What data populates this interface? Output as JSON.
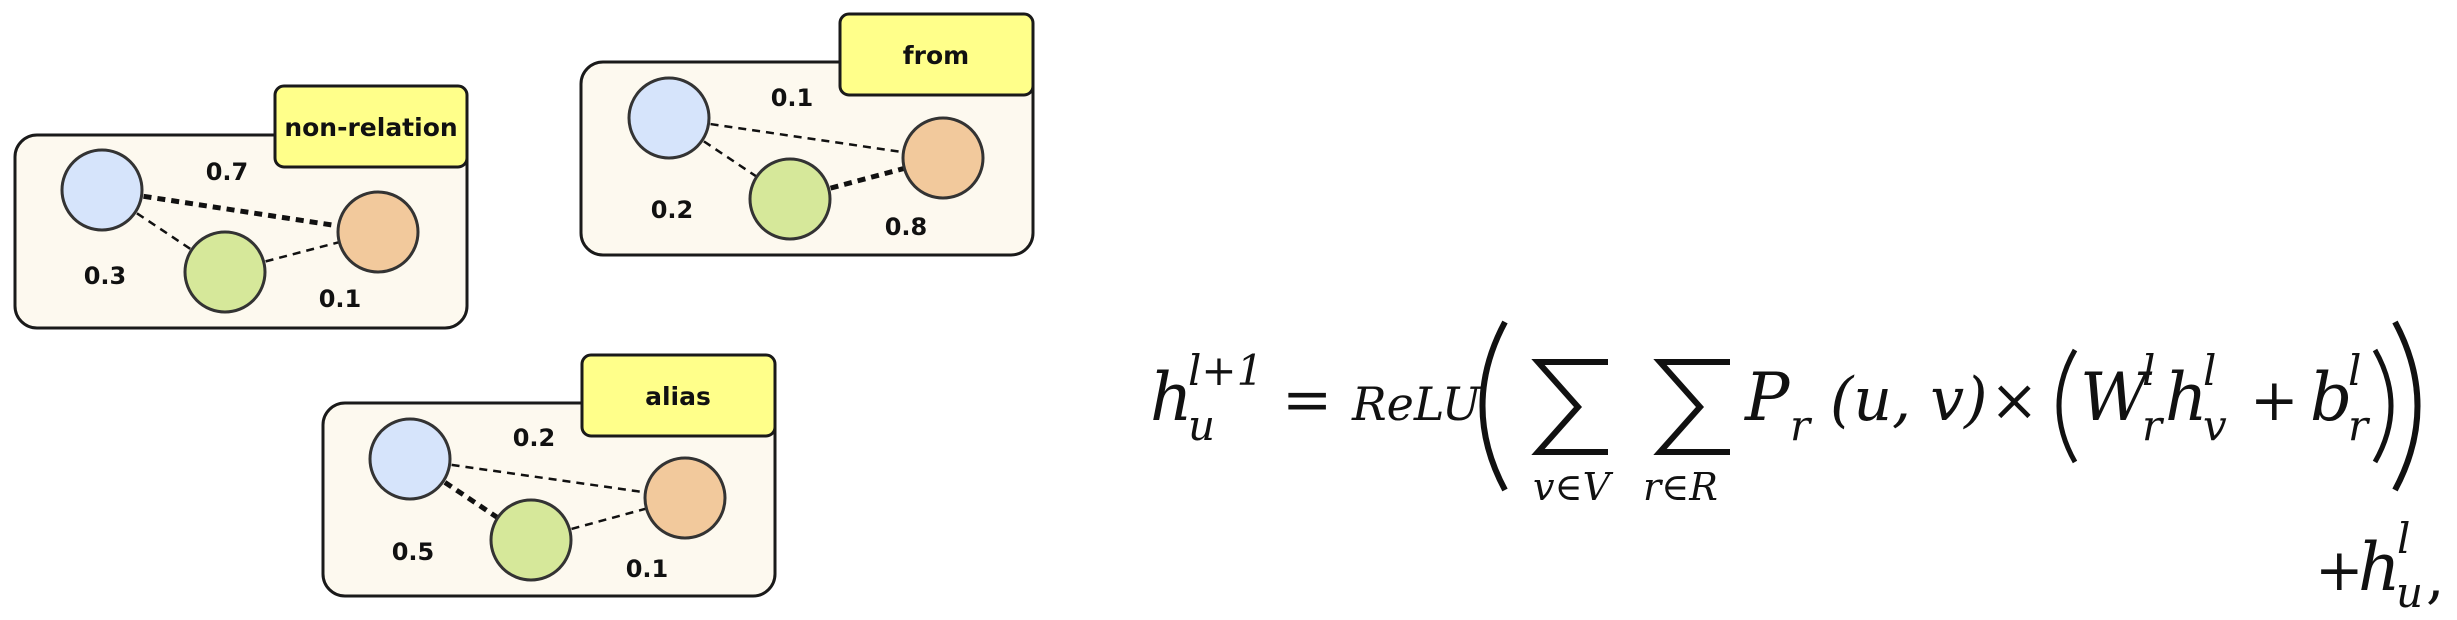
{
  "colors": {
    "panel_fill": "#fdf9ef",
    "tag_fill": "#ffff8a",
    "node_blue": "#d6e4fb",
    "node_green": "#d6e89a",
    "node_orange": "#f2c99c"
  },
  "panels": [
    {
      "id": "non-relation",
      "tag": "non-relation",
      "edges": [
        {
          "from": "blue",
          "to": "orange",
          "weight": "0.7",
          "strength": "strong"
        },
        {
          "from": "blue",
          "to": "green",
          "weight": "0.3",
          "strength": "weak"
        },
        {
          "from": "green",
          "to": "orange",
          "weight": "0.1",
          "strength": "weak"
        }
      ]
    },
    {
      "id": "from",
      "tag": "from",
      "edges": [
        {
          "from": "blue",
          "to": "orange",
          "weight": "0.1",
          "strength": "weak"
        },
        {
          "from": "blue",
          "to": "green",
          "weight": "0.2",
          "strength": "weak"
        },
        {
          "from": "green",
          "to": "orange",
          "weight": "0.8",
          "strength": "strong"
        }
      ]
    },
    {
      "id": "alias",
      "tag": "alias",
      "edges": [
        {
          "from": "blue",
          "to": "orange",
          "weight": "0.2",
          "strength": "weak"
        },
        {
          "from": "blue",
          "to": "green",
          "weight": "0.5",
          "strength": "strong"
        },
        {
          "from": "green",
          "to": "orange",
          "weight": "0.1",
          "strength": "weak"
        }
      ]
    }
  ],
  "equation": {
    "lhs_base": "h",
    "lhs_sup": "l+1",
    "lhs_sub": "u",
    "equals": "=",
    "relu": "ReLU",
    "sum1_sub": "v∈V",
    "sum2_sub": "r∈R",
    "prob": "P",
    "prob_sub": "r",
    "prob_args": "(u, v)",
    "times": "×",
    "weight_base": "W",
    "weight_sup": "l",
    "weight_sub": "r",
    "hv_base": "h",
    "hv_sup": "l",
    "hv_sub": "v",
    "plus": "+",
    "bias_base": "b",
    "bias_sup": "l",
    "bias_sub": "r",
    "residual_plus": "+",
    "residual_base": "h",
    "residual_sup": "l",
    "residual_sub": "u",
    "residual_comma": ","
  }
}
